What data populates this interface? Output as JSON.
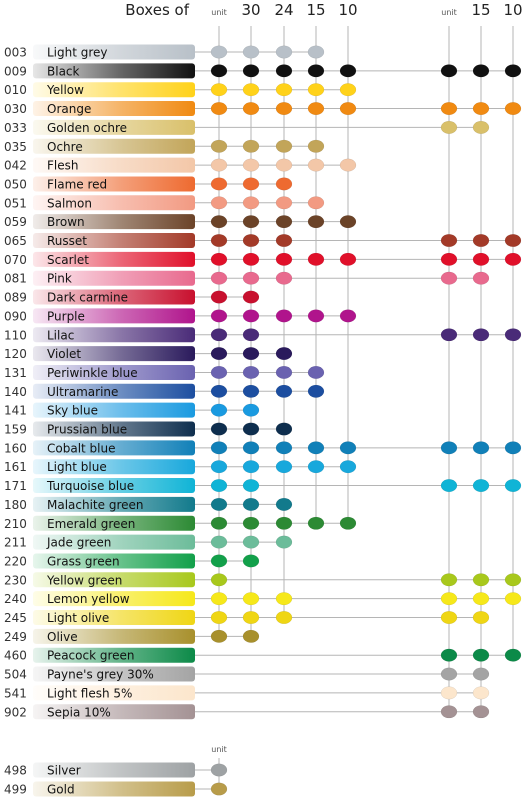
{
  "header": {
    "title": "Boxes of",
    "group_a": [
      "unit",
      "30",
      "24",
      "15",
      "10"
    ],
    "group_b": [
      "unit",
      "15",
      "10"
    ],
    "extra": "unit"
  },
  "rows": [
    {
      "code": "003",
      "name": "Light grey",
      "hex": "#b8c0c8",
      "avail": [
        1,
        1,
        1,
        1,
        0,
        0,
        0,
        0
      ]
    },
    {
      "code": "009",
      "name": "Black",
      "hex": "#111111",
      "avail": [
        1,
        1,
        1,
        1,
        1,
        1,
        1,
        1
      ]
    },
    {
      "code": "010",
      "name": "Yellow",
      "hex": "#ffd21a",
      "avail": [
        1,
        1,
        1,
        1,
        1,
        0,
        0,
        0
      ]
    },
    {
      "code": "030",
      "name": "Orange",
      "hex": "#f08a12",
      "avail": [
        1,
        1,
        1,
        1,
        1,
        1,
        1,
        1
      ]
    },
    {
      "code": "033",
      "name": "Golden ochre",
      "hex": "#d9c06a",
      "avail": [
        0,
        0,
        0,
        0,
        0,
        1,
        1,
        0
      ]
    },
    {
      "code": "035",
      "name": "Ochre",
      "hex": "#c2a559",
      "avail": [
        1,
        1,
        1,
        1,
        0,
        0,
        0,
        0
      ]
    },
    {
      "code": "042",
      "name": "Flesh",
      "hex": "#f3c7a8",
      "avail": [
        1,
        1,
        1,
        1,
        1,
        0,
        0,
        0
      ]
    },
    {
      "code": "050",
      "name": "Flame red",
      "hex": "#ee6a30",
      "avail": [
        1,
        1,
        1,
        0,
        0,
        0,
        0,
        0
      ]
    },
    {
      "code": "051",
      "name": "Salmon",
      "hex": "#f29a82",
      "avail": [
        1,
        1,
        1,
        1,
        0,
        0,
        0,
        0
      ]
    },
    {
      "code": "059",
      "name": "Brown",
      "hex": "#6b4328",
      "avail": [
        1,
        1,
        1,
        1,
        1,
        0,
        0,
        0
      ]
    },
    {
      "code": "065",
      "name": "Russet",
      "hex": "#a33a28",
      "avail": [
        1,
        1,
        1,
        0,
        0,
        1,
        1,
        1
      ]
    },
    {
      "code": "070",
      "name": "Scarlet",
      "hex": "#e0102a",
      "avail": [
        1,
        1,
        1,
        1,
        1,
        1,
        1,
        1
      ]
    },
    {
      "code": "081",
      "name": "Pink",
      "hex": "#e86a8e",
      "avail": [
        1,
        1,
        1,
        0,
        0,
        1,
        1,
        0
      ]
    },
    {
      "code": "089",
      "name": "Dark carmine",
      "hex": "#c8102e",
      "avail": [
        1,
        1,
        0,
        0,
        0,
        0,
        0,
        0
      ]
    },
    {
      "code": "090",
      "name": "Purple",
      "hex": "#b0148c",
      "avail": [
        1,
        1,
        1,
        1,
        1,
        0,
        0,
        0
      ]
    },
    {
      "code": "110",
      "name": "Lilac",
      "hex": "#4a2b78",
      "avail": [
        1,
        1,
        0,
        0,
        0,
        1,
        1,
        1
      ]
    },
    {
      "code": "120",
      "name": "Violet",
      "hex": "#2a1a5c",
      "avail": [
        1,
        1,
        1,
        0,
        0,
        0,
        0,
        0
      ]
    },
    {
      "code": "131",
      "name": "Periwinkle blue",
      "hex": "#6a62b0",
      "avail": [
        1,
        1,
        1,
        1,
        0,
        0,
        0,
        0
      ]
    },
    {
      "code": "140",
      "name": "Ultramarine",
      "hex": "#1c4ea0",
      "avail": [
        1,
        1,
        1,
        1,
        0,
        0,
        0,
        0
      ]
    },
    {
      "code": "141",
      "name": "Sky blue",
      "hex": "#1a9ae0",
      "avail": [
        1,
        1,
        0,
        0,
        0,
        0,
        0,
        0
      ]
    },
    {
      "code": "159",
      "name": "Prussian blue",
      "hex": "#0e2e4e",
      "avail": [
        1,
        1,
        1,
        0,
        0,
        0,
        0,
        0
      ]
    },
    {
      "code": "160",
      "name": "Cobalt blue",
      "hex": "#1180b8",
      "avail": [
        1,
        1,
        1,
        1,
        1,
        1,
        1,
        1
      ]
    },
    {
      "code": "161",
      "name": "Light blue",
      "hex": "#18a8dc",
      "avail": [
        1,
        1,
        1,
        1,
        1,
        0,
        0,
        0
      ]
    },
    {
      "code": "171",
      "name": "Turquoise blue",
      "hex": "#10b4d6",
      "avail": [
        1,
        1,
        0,
        0,
        0,
        1,
        1,
        1
      ]
    },
    {
      "code": "180",
      "name": "Malachite green",
      "hex": "#127a8c",
      "avail": [
        1,
        1,
        1,
        0,
        0,
        0,
        0,
        0
      ]
    },
    {
      "code": "210",
      "name": "Emerald green",
      "hex": "#2c8a34",
      "avail": [
        1,
        1,
        1,
        1,
        1,
        0,
        0,
        0
      ]
    },
    {
      "code": "211",
      "name": "Jade green",
      "hex": "#6cbc9a",
      "avail": [
        1,
        1,
        1,
        0,
        0,
        0,
        0,
        0
      ]
    },
    {
      "code": "220",
      "name": "Grass green",
      "hex": "#12a04a",
      "avail": [
        1,
        1,
        0,
        0,
        0,
        0,
        0,
        0
      ]
    },
    {
      "code": "230",
      "name": "Yellow green",
      "hex": "#a8c81c",
      "avail": [
        1,
        0,
        0,
        0,
        0,
        1,
        1,
        1
      ]
    },
    {
      "code": "240",
      "name": "Lemon yellow",
      "hex": "#f6e81a",
      "avail": [
        1,
        1,
        1,
        0,
        0,
        1,
        1,
        1
      ]
    },
    {
      "code": "245",
      "name": "Light olive",
      "hex": "#efd614",
      "avail": [
        1,
        1,
        1,
        0,
        0,
        1,
        1,
        0
      ]
    },
    {
      "code": "249",
      "name": "Olive",
      "hex": "#a8902c",
      "avail": [
        1,
        1,
        0,
        0,
        0,
        0,
        0,
        0
      ]
    },
    {
      "code": "460",
      "name": "Peacock green",
      "hex": "#0c8a48",
      "avail": [
        0,
        0,
        0,
        0,
        0,
        1,
        1,
        1
      ]
    },
    {
      "code": "504",
      "name": "Payne's grey 30%",
      "hex": "#a4a4a4",
      "avail": [
        0,
        0,
        0,
        0,
        0,
        1,
        1,
        0
      ]
    },
    {
      "code": "541",
      "name": "Light flesh 5%",
      "hex": "#fce6cc",
      "avail": [
        0,
        0,
        0,
        0,
        0,
        1,
        1,
        0
      ]
    },
    {
      "code": "902",
      "name": "Sepia 10%",
      "hex": "#a49294",
      "avail": [
        0,
        0,
        0,
        0,
        0,
        1,
        1,
        0
      ]
    }
  ],
  "extra_rows": [
    {
      "code": "498",
      "name": "Silver",
      "hex": "#9ea2a4"
    },
    {
      "code": "499",
      "name": "Gold",
      "hex": "#b89c4a"
    }
  ]
}
